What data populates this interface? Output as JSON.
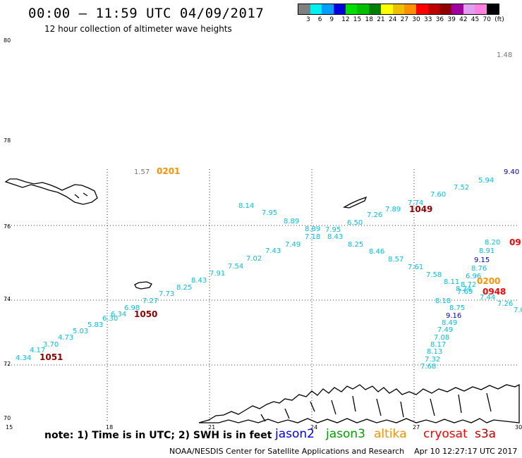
{
  "header": {
    "title": "00:00 – 11:59 UTC 04/09/2017",
    "subtitle": "12 hour collection of altimeter wave heights"
  },
  "legend": {
    "colors": [
      "#808080",
      "#00f0f0",
      "#00a0ff",
      "#0000e0",
      "#00e000",
      "#00c000",
      "#008000",
      "#ffff00",
      "#f0c000",
      "#ff9000",
      "#ff0000",
      "#c00000",
      "#900000",
      "#a000a0",
      "#e0a0f0",
      "#ff80e0",
      "#000000"
    ],
    "labels": [
      "3",
      "6",
      "9",
      "12",
      "15",
      "18",
      "21",
      "24",
      "27",
      "30",
      "33",
      "36",
      "39",
      "42",
      "45",
      "70",
      "(ft)"
    ]
  },
  "axes": {
    "lat_labels": [
      "80",
      "78",
      "76",
      "74",
      "72",
      "70"
    ],
    "lon_labels": [
      "15",
      "18",
      "21",
      "24",
      "27",
      "30"
    ]
  },
  "map_data": {
    "corner_value": "1.48",
    "labels": [
      {
        "t": "1.57",
        "c": "#777777"
      },
      {
        "t": "0201",
        "c": "#ff9000"
      },
      {
        "t": "9.40",
        "c": "#0000c0"
      },
      {
        "t": "5.94",
        "c": "#00c0e0"
      },
      {
        "t": "7.52",
        "c": "#00c0e0"
      },
      {
        "t": "7.60",
        "c": "#00c0e0"
      },
      {
        "t": "7.74",
        "c": "#00c0e0"
      },
      {
        "t": "1049",
        "c": "#900000"
      },
      {
        "t": "7.89",
        "c": "#00c0e0"
      },
      {
        "t": "7.26",
        "c": "#00c0e0"
      },
      {
        "t": "6.50",
        "c": "#00c0e0"
      },
      {
        "t": "8.14",
        "c": "#00c0e0"
      },
      {
        "t": "7.95",
        "c": "#00c0e0"
      },
      {
        "t": "8.89",
        "c": "#00c0e0"
      },
      {
        "t": "8.89",
        "c": "#00c0e0"
      },
      {
        "t": "7.95",
        "c": "#00c0e0"
      },
      {
        "t": "7.18",
        "c": "#00c0e0"
      },
      {
        "t": "8.43",
        "c": "#00c0e0"
      },
      {
        "t": "8.25",
        "c": "#00c0e0"
      },
      {
        "t": "8.46",
        "c": "#00c0e0"
      },
      {
        "t": "8.57",
        "c": "#00c0e0"
      },
      {
        "t": "7.61",
        "c": "#00c0e0"
      },
      {
        "t": "7.58",
        "c": "#00c0e0"
      },
      {
        "t": "8.20",
        "c": "#00c0e0"
      },
      {
        "t": "09",
        "c": "#ff0000"
      },
      {
        "t": "8.91",
        "c": "#00c0e0"
      },
      {
        "t": "9.15",
        "c": "#0000c0"
      },
      {
        "t": "8.76",
        "c": "#00c0e0"
      },
      {
        "t": "6.96",
        "c": "#00c0e0"
      },
      {
        "t": "8.11",
        "c": "#00c0e0"
      },
      {
        "t": "8.72",
        "c": "#00c0e0"
      },
      {
        "t": "0200",
        "c": "#ff9000"
      },
      {
        "t": "8.24",
        "c": "#00c0e0"
      },
      {
        "t": "7.69",
        "c": "#00c0e0"
      },
      {
        "t": "0948",
        "c": "#ff0000"
      },
      {
        "t": "7.44",
        "c": "#00c0e0"
      },
      {
        "t": "7.26",
        "c": "#00c0e0"
      },
      {
        "t": "7.0",
        "c": "#00c0e0"
      },
      {
        "t": "8.18",
        "c": "#00c0e0"
      },
      {
        "t": "8.75",
        "c": "#00c0e0"
      },
      {
        "t": "9.16",
        "c": "#0000c0"
      },
      {
        "t": "8.49",
        "c": "#00c0e0"
      },
      {
        "t": "7.49",
        "c": "#00c0e0"
      },
      {
        "t": "7.08",
        "c": "#00c0e0"
      },
      {
        "t": "8.17",
        "c": "#00c0e0"
      },
      {
        "t": "8.13",
        "c": "#00c0e0"
      },
      {
        "t": "7.32",
        "c": "#00c0e0"
      },
      {
        "t": "7.68",
        "c": "#00c0e0"
      },
      {
        "t": "7.49",
        "c": "#00c0e0"
      },
      {
        "t": "7.43",
        "c": "#00c0e0"
      },
      {
        "t": "7.02",
        "c": "#00c0e0"
      },
      {
        "t": "7.54",
        "c": "#00c0e0"
      },
      {
        "t": "7.91",
        "c": "#00c0e0"
      },
      {
        "t": "8.43",
        "c": "#00c0e0"
      },
      {
        "t": "8.25",
        "c": "#00c0e0"
      },
      {
        "t": "7.73",
        "c": "#00c0e0"
      },
      {
        "t": "7.27",
        "c": "#00c0e0"
      },
      {
        "t": "6.98",
        "c": "#00c0e0"
      },
      {
        "t": "1050",
        "c": "#900000"
      },
      {
        "t": "6.34",
        "c": "#00c0e0"
      },
      {
        "t": "6.30",
        "c": "#00c0e0"
      },
      {
        "t": "5.83",
        "c": "#00c0e0"
      },
      {
        "t": "5.03",
        "c": "#00c0e0"
      },
      {
        "t": "4.73",
        "c": "#00c0e0"
      },
      {
        "t": "3.70",
        "c": "#00c0e0"
      },
      {
        "t": "4.17",
        "c": "#00c0e0"
      },
      {
        "t": "4.34",
        "c": "#00c0e0"
      },
      {
        "t": "1051",
        "c": "#900000"
      }
    ]
  },
  "notes": {
    "text": "note: 1) Time is in UTC; 2) SWH is in feet",
    "satellites": [
      {
        "name": "jason2",
        "color": "#0000ff"
      },
      {
        "name": "jason3",
        "color": "#00a000"
      },
      {
        "name": "altika",
        "color": "#ff9000"
      },
      {
        "name": "cryosat",
        "color": "#ff0000"
      },
      {
        "name": "s3a",
        "color": "#c00000"
      }
    ]
  },
  "footer": {
    "credit": "NOAA/NESDIS Center for Satellite Applications and Research",
    "timestamp": "Apr 10 12:27:17 UTC 2017"
  }
}
